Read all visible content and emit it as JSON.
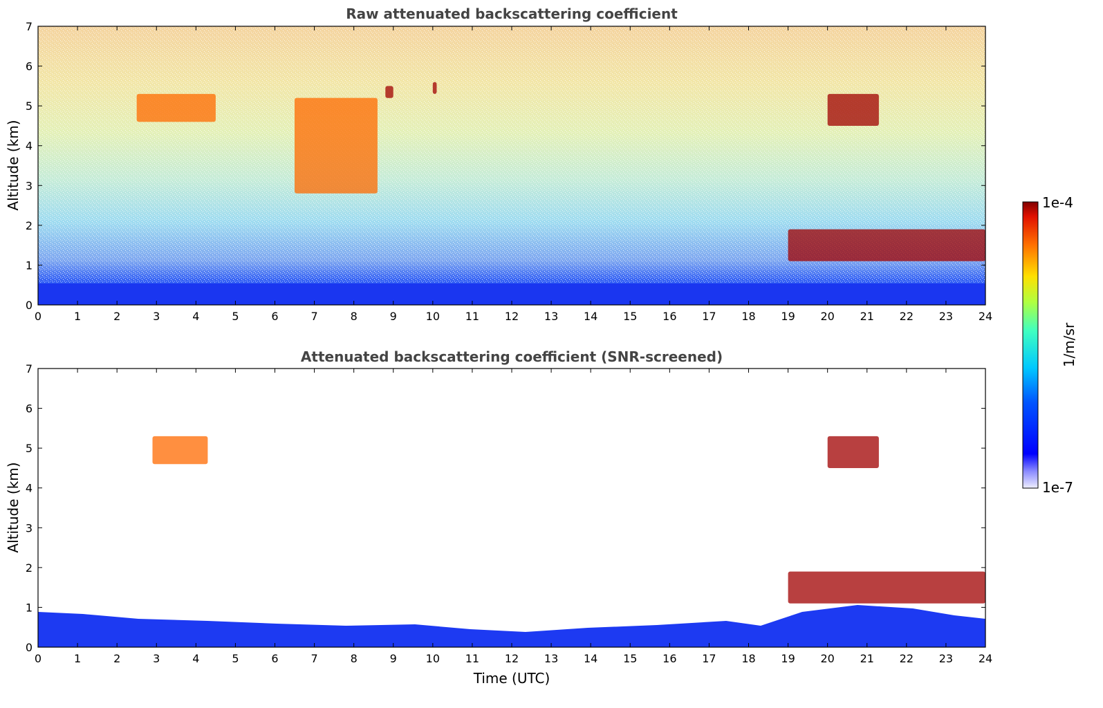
{
  "chart_data": [
    {
      "type": "heatmap",
      "title": "Raw attenuated backscattering coefficient",
      "xlabel": "",
      "ylabel": "Altitude (km)",
      "xlim": [
        0,
        24
      ],
      "ylim": [
        0,
        7
      ],
      "x_ticks": [
        "0",
        "1",
        "2",
        "3",
        "4",
        "5",
        "6",
        "7",
        "8",
        "9",
        "10",
        "11",
        "12",
        "13",
        "14",
        "15",
        "16",
        "17",
        "18",
        "19",
        "20",
        "21",
        "22",
        "23",
        "24"
      ],
      "y_ticks": [
        "0",
        "1",
        "2",
        "3",
        "4",
        "5",
        "6",
        "7"
      ],
      "features": [
        {
          "feature": "boundary layer",
          "time_utc": [
            0,
            24
          ],
          "altitude_km": [
            0,
            0.55
          ],
          "intensity": "low"
        },
        {
          "feature": "cirrus cloud",
          "time_utc": [
            2.5,
            4.5
          ],
          "altitude_km": [
            4.6,
            5.3
          ],
          "intensity": "high"
        },
        {
          "feature": "fall streak",
          "time_utc": [
            6.5,
            8.6
          ],
          "altitude_km": [
            2.8,
            5.2
          ],
          "intensity": "high"
        },
        {
          "feature": "small cloud",
          "time_utc": [
            8.8,
            9.0
          ],
          "altitude_km": [
            5.2,
            5.5
          ],
          "intensity": "very high"
        },
        {
          "feature": "small cloud",
          "time_utc": [
            10.0,
            10.1
          ],
          "altitude_km": [
            5.3,
            5.6
          ],
          "intensity": "very high"
        },
        {
          "feature": "mid-level cloud",
          "time_utc": [
            20.0,
            21.3
          ],
          "altitude_km": [
            4.5,
            5.3
          ],
          "intensity": "very high"
        },
        {
          "feature": "boundary layer top cloud",
          "time_utc": [
            19.0,
            24.0
          ],
          "altitude_km": [
            1.1,
            1.9
          ],
          "intensity": "very high"
        }
      ]
    },
    {
      "type": "heatmap",
      "title": "Attenuated backscattering coefficient (SNR-screened)",
      "xlabel": "Time (UTC)",
      "ylabel": "Altitude (km)",
      "xlim": [
        0,
        24
      ],
      "ylim": [
        0,
        7
      ],
      "x_ticks": [
        "0",
        "1",
        "2",
        "3",
        "4",
        "5",
        "6",
        "7",
        "8",
        "9",
        "10",
        "11",
        "12",
        "13",
        "14",
        "15",
        "16",
        "17",
        "18",
        "19",
        "20",
        "21",
        "22",
        "23",
        "24"
      ],
      "y_ticks": [
        "0",
        "1",
        "2",
        "3",
        "4",
        "5",
        "6",
        "7"
      ],
      "features": [
        {
          "feature": "boundary layer",
          "time_utc": [
            0,
            24
          ],
          "altitude_km": [
            0,
            0.9
          ],
          "intensity": "low"
        },
        {
          "feature": "cirrus cloud",
          "time_utc": [
            2.9,
            4.3
          ],
          "altitude_km": [
            4.6,
            5.3
          ],
          "intensity": "high"
        },
        {
          "feature": "mid-level cloud",
          "time_utc": [
            20.0,
            21.3
          ],
          "altitude_km": [
            4.5,
            5.3
          ],
          "intensity": "very high"
        },
        {
          "feature": "boundary layer top cloud",
          "time_utc": [
            19.0,
            24.0
          ],
          "altitude_km": [
            1.1,
            1.9
          ],
          "intensity": "very high"
        }
      ]
    }
  ],
  "colorbar": {
    "label": "1/m/sr",
    "max_label": "1e-4",
    "min_label": "1e-7",
    "scale": "log"
  }
}
